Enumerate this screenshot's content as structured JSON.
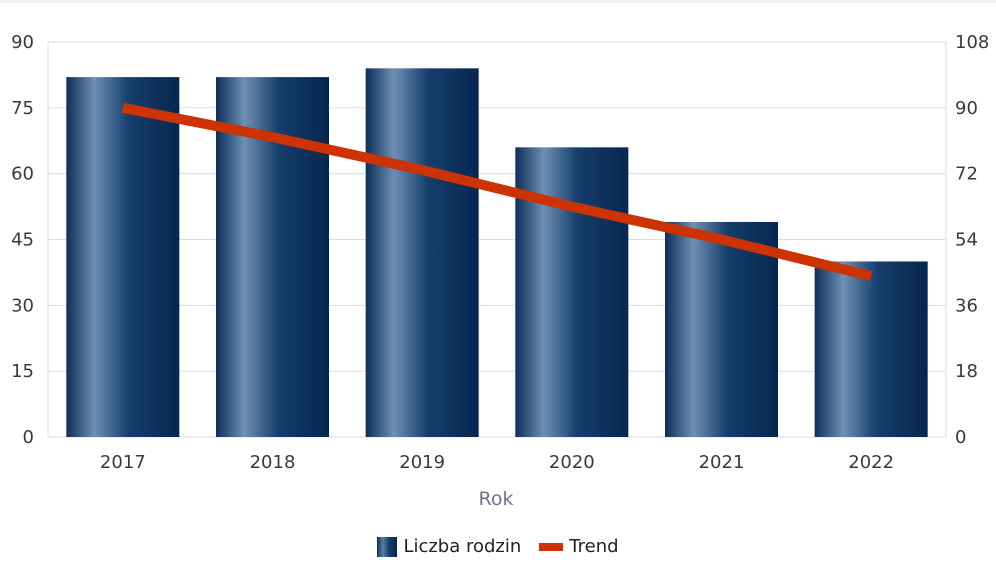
{
  "chart_data": {
    "type": "bar",
    "categories": [
      "2017",
      "2018",
      "2019",
      "2020",
      "2021",
      "2022"
    ],
    "series": [
      {
        "name": "Liczba rodzin",
        "type": "bar",
        "axis": "left",
        "values": [
          82,
          82,
          84,
          66,
          49,
          40
        ]
      },
      {
        "name": "Trend",
        "type": "line",
        "axis": "right",
        "values": [
          90,
          82,
          73,
          63,
          54,
          44
        ]
      }
    ],
    "xlabel": "Rok",
    "ylim_left": [
      0,
      90
    ],
    "yticks_left": [
      "0",
      "15",
      "30",
      "45",
      "60",
      "75",
      "90"
    ],
    "ylim_right": [
      0,
      108
    ],
    "yticks_right": [
      "0",
      "18",
      "36",
      "54",
      "72",
      "90",
      "108"
    ],
    "grid": true,
    "legend_position": "bottom",
    "colors": {
      "bar_dark": "#06264f",
      "bar_light": "#6f8fb3",
      "trend": "#cc3300",
      "grid": "#d9dbe3"
    }
  }
}
